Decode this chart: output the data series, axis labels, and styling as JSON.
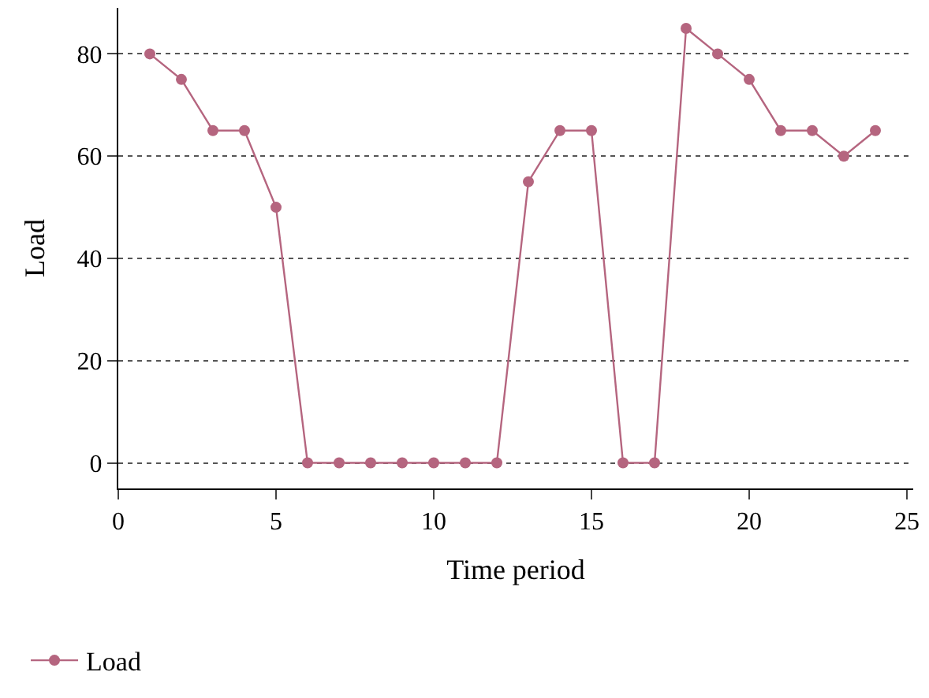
{
  "chart_data": {
    "type": "line",
    "xlabel": "Time period",
    "ylabel": "Load",
    "x": [
      1,
      2,
      3,
      4,
      5,
      6,
      7,
      8,
      9,
      10,
      11,
      12,
      13,
      14,
      15,
      16,
      17,
      18,
      19,
      20,
      21,
      22,
      23,
      24
    ],
    "series": [
      {
        "name": "Load",
        "color": "#b5657f",
        "values": [
          80,
          75,
          65,
          65,
          50,
          0,
          0,
          0,
          0,
          0,
          0,
          0,
          55,
          65,
          65,
          0,
          0,
          85,
          80,
          75,
          65,
          65,
          60,
          65
        ]
      }
    ],
    "xlim": [
      0,
      25.2
    ],
    "xticks": [
      0,
      5,
      10,
      15,
      20,
      25
    ],
    "ylim": [
      -5,
      89
    ],
    "yticks": [
      0,
      20,
      40,
      60,
      80
    ],
    "grid": "y",
    "legend": "bottom left",
    "marker": "circle",
    "line_style": "solid"
  }
}
